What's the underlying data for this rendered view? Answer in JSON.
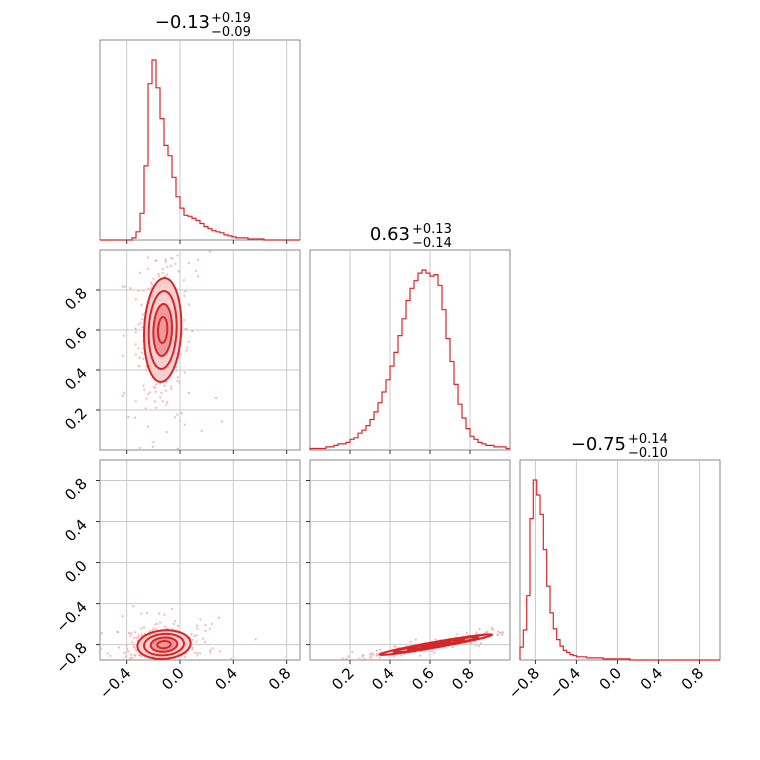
{
  "chart_data": {
    "type": "corner",
    "colors": {
      "main": "#d62728",
      "fill_outer": "#f6cfd0",
      "fill_inner": "#eb9a9c",
      "points": "#f2b8b9",
      "grid": "#c8c8c8",
      "frame": "#8a8a8a"
    },
    "parameters": [
      {
        "title_value": "−0.13",
        "err_plus": "+0.19",
        "err_minus": "−0.09",
        "range": [
          -0.6,
          0.9
        ]
      },
      {
        "title_value": "0.63",
        "err_plus": "+0.13",
        "err_minus": "−0.14",
        "range": [
          0.0,
          1.0
        ]
      },
      {
        "title_value": "−0.75",
        "err_plus": "+0.14",
        "err_minus": "−0.10",
        "range": [
          -0.95,
          1.0
        ]
      }
    ],
    "ticks": [
      {
        "values": [
          -0.4,
          0.0,
          0.4,
          0.8
        ],
        "labels": [
          "−0.4",
          "0.0",
          "0.4",
          "0.8"
        ]
      },
      {
        "values": [
          0.2,
          0.4,
          0.6,
          0.8
        ],
        "labels": [
          "0.2",
          "0.4",
          "0.6",
          "0.8"
        ]
      },
      {
        "values": [
          -0.8,
          -0.4,
          0.0,
          0.4,
          0.8
        ],
        "labels": [
          "−0.8",
          "−0.4",
          "0.0",
          "0.4",
          "0.8"
        ]
      }
    ],
    "histograms": [
      {
        "bin_start": -0.6,
        "bin_width": 0.03,
        "counts": [
          0,
          0,
          0,
          0,
          0,
          0,
          0,
          0,
          2,
          8,
          26,
          72,
          152,
          175,
          148,
          118,
          92,
          82,
          61,
          42,
          31,
          24,
          23,
          21,
          19,
          16,
          13,
          11,
          9,
          8,
          7,
          5,
          4,
          3,
          2,
          2,
          2,
          1,
          1,
          1,
          1,
          0,
          0,
          0,
          0,
          0,
          0,
          0,
          0,
          0
        ]
      },
      {
        "bin_start": 0.0,
        "bin_width": 0.02,
        "counts": [
          1,
          1,
          1,
          1,
          2,
          2,
          3,
          4,
          4,
          5,
          7,
          8,
          11,
          13,
          16,
          20,
          25,
          31,
          38,
          46,
          55,
          64,
          75,
          86,
          98,
          106,
          111,
          116,
          118,
          116,
          114,
          115,
          108,
          92,
          73,
          58,
          43,
          30,
          21,
          14,
          9,
          7,
          5,
          4,
          3,
          3,
          2,
          2,
          2,
          1
        ]
      },
      {
        "bin_start": -0.95,
        "bin_width": 0.0325,
        "counts": [
          12,
          28,
          60,
          132,
          168,
          154,
          136,
          103,
          69,
          44,
          29,
          19,
          13,
          9,
          7,
          5,
          4,
          3,
          3,
          3,
          2,
          2,
          2,
          2,
          2,
          1,
          1,
          1,
          1,
          1,
          1,
          1,
          1,
          0,
          0,
          0,
          0,
          0,
          0,
          0,
          0,
          0,
          0,
          0,
          0,
          0,
          0,
          0,
          0,
          0,
          0,
          0,
          0,
          0,
          0,
          0,
          0,
          0,
          0,
          0
        ]
      }
    ],
    "pairs": [
      {
        "row": 1,
        "col": 0,
        "mean": [
          -0.13,
          0.6
        ],
        "sd": [
          0.07,
          0.13
        ],
        "rho": 0.1,
        "n_points": 520
      },
      {
        "row": 2,
        "col": 0,
        "mean": [
          -0.12,
          -0.8
        ],
        "sd": [
          0.1,
          0.07
        ],
        "rho": 0.1,
        "n_points": 480
      },
      {
        "row": 2,
        "col": 1,
        "mean": [
          0.63,
          -0.8
        ],
        "sd": [
          0.14,
          0.05
        ],
        "rho": 0.96,
        "n_points": 520
      }
    ]
  }
}
